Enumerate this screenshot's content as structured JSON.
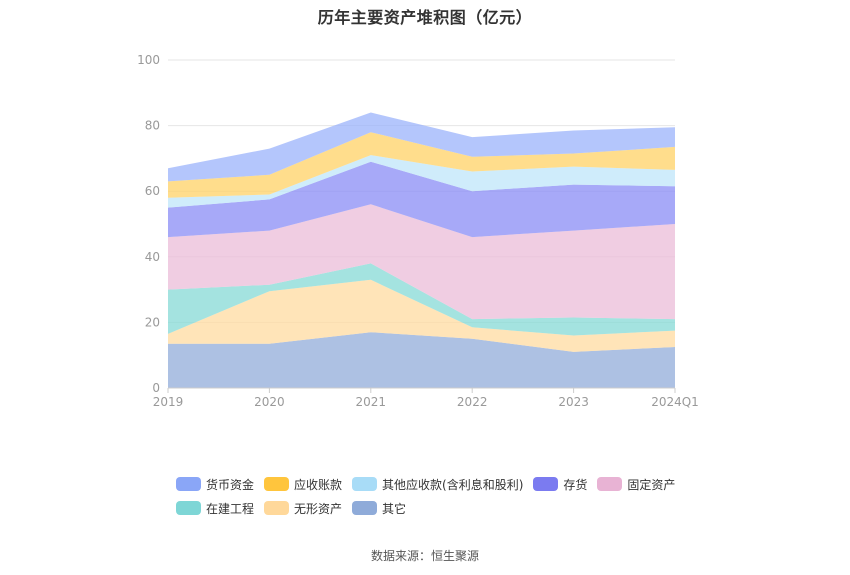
{
  "chart_data": {
    "type": "area",
    "stacked": true,
    "title": "历年主要资产堆积图（亿元）",
    "x": [
      "2019",
      "2020",
      "2021",
      "2022",
      "2023",
      "2024Q1"
    ],
    "ylim": [
      0,
      100
    ],
    "yticks": [
      0,
      20,
      40,
      60,
      80,
      100
    ],
    "grid": true,
    "legend_position": "bottom",
    "series": [
      {
        "name": "其它",
        "color": "#91acd9",
        "values": [
          13.5,
          13.5,
          17.0,
          15.0,
          11.0,
          12.5
        ]
      },
      {
        "name": "无形资产",
        "color": "#ffdba0",
        "values": [
          3.0,
          16.0,
          16.0,
          3.5,
          5.0,
          5.0
        ]
      },
      {
        "name": "在建工程",
        "color": "#86d9d6",
        "values": [
          13.5,
          2.0,
          5.0,
          2.5,
          5.5,
          3.5
        ]
      },
      {
        "name": "固定资产",
        "color": "#ebbcd8",
        "values": [
          16.0,
          16.5,
          18.0,
          25.0,
          26.5,
          29.0
        ]
      },
      {
        "name": "存货",
        "color": "#8a8cf5",
        "values": [
          9.0,
          9.5,
          13.0,
          14.0,
          14.0,
          11.5
        ]
      },
      {
        "name": "其他应收款(含利息和股利)",
        "color": "#bfe6fa",
        "values": [
          3.0,
          1.5,
          2.0,
          6.0,
          5.5,
          5.0
        ]
      },
      {
        "name": "应收账款",
        "color": "#ffd166",
        "values": [
          5.0,
          6.0,
          7.0,
          4.5,
          4.0,
          7.0
        ]
      },
      {
        "name": "货币资金",
        "color": "#9bb3fb",
        "values": [
          4.0,
          8.0,
          6.0,
          6.0,
          7.0,
          6.0
        ]
      }
    ]
  },
  "legend": {
    "row1": [
      {
        "label": "货币资金",
        "color": "#8aa6f7"
      },
      {
        "label": "应收账款",
        "color": "#ffc53d"
      },
      {
        "label": "其他应收款(含利息和股利)",
        "color": "#a8dcf7"
      },
      {
        "label": "存货",
        "color": "#7b7bf0"
      },
      {
        "label": "固定资产",
        "color": "#e8b3d4"
      }
    ],
    "row2": [
      {
        "label": "在建工程",
        "color": "#7ed6d6"
      },
      {
        "label": "无形资产",
        "color": "#ffd89a"
      },
      {
        "label": "其它",
        "color": "#8fabd9"
      }
    ]
  },
  "source": "数据来源：恒生聚源"
}
